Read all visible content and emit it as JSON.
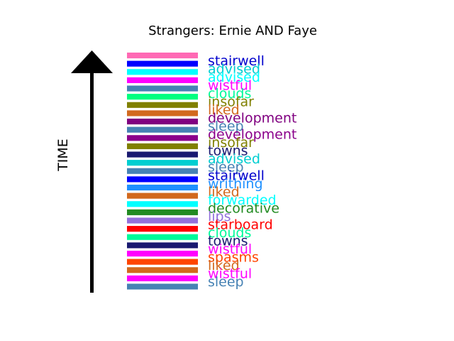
{
  "chart_data": {
    "type": "bar",
    "title": "Strangers: Ernie AND Faye",
    "ylabel": "TIME",
    "stripes": [
      "#ff69b4",
      "#0000ff",
      "#00ffff",
      "#ff00ff",
      "#4682b4",
      "#00ff7f",
      "#808000",
      "#d2691e",
      "#800080",
      "#4682b4",
      "#8b008b",
      "#808000",
      "#191970",
      "#00ced1",
      "#4682b4",
      "#0000ff",
      "#1e90ff",
      "#d2691e",
      "#00ffff",
      "#228b22",
      "#9370db",
      "#ff0000",
      "#00fa9a",
      "#191970",
      "#ff00ff",
      "#ff4500",
      "#d2691e",
      "#ff00ff",
      "#4682b4"
    ],
    "labels": [
      {
        "text": "stairwell",
        "color": "#0000cd"
      },
      {
        "text": "advised",
        "color": "#00ced1"
      },
      {
        "text": "advised",
        "color": "#00ffff"
      },
      {
        "text": "wistful",
        "color": "#ff00ff"
      },
      {
        "text": "clouds",
        "color": "#00fa9a"
      },
      {
        "text": "insofar",
        "color": "#808000"
      },
      {
        "text": "liked",
        "color": "#d2691e"
      },
      {
        "text": "development",
        "color": "#800080"
      },
      {
        "text": "sleep",
        "color": "#4682b4"
      },
      {
        "text": "development",
        "color": "#8b008b"
      },
      {
        "text": "insofar",
        "color": "#808000"
      },
      {
        "text": "towns",
        "color": "#191970"
      },
      {
        "text": "advised",
        "color": "#00ced1"
      },
      {
        "text": "sleep",
        "color": "#4682b4"
      },
      {
        "text": "stairwell",
        "color": "#0000cd"
      },
      {
        "text": "writhing",
        "color": "#1e90ff"
      },
      {
        "text": "liked",
        "color": "#d2691e"
      },
      {
        "text": "forwarded",
        "color": "#00ffff"
      },
      {
        "text": "decorative",
        "color": "#228b22"
      },
      {
        "text": "lips",
        "color": "#9370db"
      },
      {
        "text": "starboard",
        "color": "#ff0000"
      },
      {
        "text": "clouds",
        "color": "#00fa9a"
      },
      {
        "text": "towns",
        "color": "#191970"
      },
      {
        "text": "wistful",
        "color": "#ff00ff"
      },
      {
        "text": "spasms",
        "color": "#ff4500"
      },
      {
        "text": "liked",
        "color": "#d2691e"
      },
      {
        "text": "wistful",
        "color": "#ff00ff"
      },
      {
        "text": "sleep",
        "color": "#4682b4"
      }
    ]
  }
}
